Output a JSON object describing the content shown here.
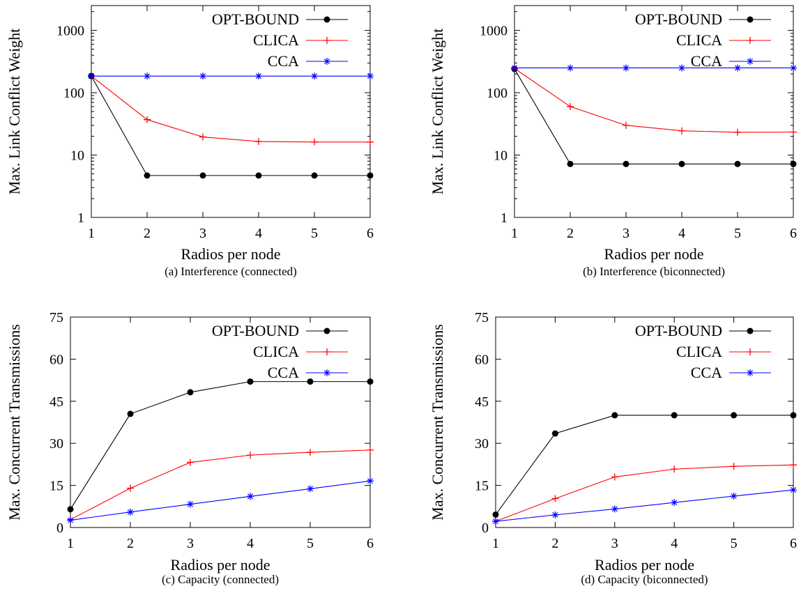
{
  "chart_data": [
    {
      "type": "line",
      "caption": "(a)  Interference (connected)",
      "xlabel": "Radios per node",
      "ylabel": "Max. Link Conflict Weight",
      "yscale": "log",
      "xlim": [
        1,
        6
      ],
      "ylim": [
        1,
        2500
      ],
      "x_ticks": [
        1,
        2,
        3,
        4,
        5,
        6
      ],
      "y_ticks": [
        1,
        10,
        100,
        1000
      ],
      "y_tick_labels": [
        "1",
        "10",
        "100",
        "1000"
      ],
      "legend_position": "top-right",
      "grid": false,
      "x": [
        1,
        2,
        3,
        4,
        5,
        6
      ],
      "series": [
        {
          "name": "OPT-BOUND",
          "color": "#000000",
          "marker": "dot",
          "values": [
            185,
            4.7,
            4.7,
            4.7,
            4.7,
            4.7
          ]
        },
        {
          "name": "CLICA",
          "color": "#ff0000",
          "marker": "plus",
          "values": [
            185,
            37,
            19.5,
            16.5,
            16.2,
            16.2
          ]
        },
        {
          "name": "CCA",
          "color": "#0000ff",
          "marker": "star",
          "values": [
            185,
            185,
            185,
            185,
            185,
            185
          ]
        }
      ]
    },
    {
      "type": "line",
      "caption": "(b)  Interference (biconnected)",
      "xlabel": "Radios per node",
      "ylabel": "Max. Link Conflict Weight",
      "yscale": "log",
      "xlim": [
        1,
        6
      ],
      "ylim": [
        1,
        2500
      ],
      "x_ticks": [
        1,
        2,
        3,
        4,
        5,
        6
      ],
      "y_ticks": [
        1,
        10,
        100,
        1000
      ],
      "y_tick_labels": [
        "1",
        "10",
        "100",
        "1000"
      ],
      "legend_position": "top-right",
      "grid": false,
      "x": [
        1,
        2,
        3,
        4,
        5,
        6
      ],
      "series": [
        {
          "name": "OPT-BOUND",
          "color": "#000000",
          "marker": "dot",
          "values": [
            240,
            7.2,
            7.2,
            7.2,
            7.2,
            7.2
          ]
        },
        {
          "name": "CLICA",
          "color": "#ff0000",
          "marker": "plus",
          "values": [
            245,
            60,
            30,
            24.5,
            23.2,
            23.4
          ]
        },
        {
          "name": "CCA",
          "color": "#0000ff",
          "marker": "star",
          "values": [
            250,
            250,
            250,
            250,
            250,
            250
          ]
        }
      ]
    },
    {
      "type": "line",
      "caption": "(c)  Capacity (connected)",
      "xlabel": "Radios per node",
      "ylabel": "Max. Concurrent Transmissions",
      "yscale": "linear",
      "xlim": [
        1,
        6
      ],
      "ylim": [
        0,
        75
      ],
      "x_ticks": [
        1,
        2,
        3,
        4,
        5,
        6
      ],
      "y_ticks": [
        0,
        15,
        30,
        45,
        60,
        75
      ],
      "y_tick_labels": [
        "0",
        "15",
        "30",
        "45",
        "60",
        "75"
      ],
      "legend_position": "top-right",
      "grid": false,
      "x": [
        1,
        2,
        3,
        4,
        5,
        6
      ],
      "series": [
        {
          "name": "OPT-BOUND",
          "color": "#000000",
          "marker": "dot",
          "values": [
            6.5,
            40.5,
            48.2,
            52,
            52,
            52
          ]
        },
        {
          "name": "CLICA",
          "color": "#ff0000",
          "marker": "plus",
          "values": [
            2.8,
            14,
            23.2,
            25.8,
            26.8,
            27.6
          ]
        },
        {
          "name": "CCA",
          "color": "#0000ff",
          "marker": "star",
          "values": [
            2.6,
            5.5,
            8.3,
            11.1,
            13.8,
            16.6
          ]
        }
      ]
    },
    {
      "type": "line",
      "caption": "(d)  Capacity (biconnected)",
      "xlabel": "Radios per node",
      "ylabel": "Max. Concurrent Transmissions",
      "yscale": "linear",
      "xlim": [
        1,
        6
      ],
      "ylim": [
        0,
        75
      ],
      "x_ticks": [
        1,
        2,
        3,
        4,
        5,
        6
      ],
      "y_ticks": [
        0,
        15,
        30,
        45,
        60,
        75
      ],
      "y_tick_labels": [
        "0",
        "15",
        "30",
        "45",
        "60",
        "75"
      ],
      "legend_position": "top-right",
      "grid": false,
      "x": [
        1,
        2,
        3,
        4,
        5,
        6
      ],
      "series": [
        {
          "name": "OPT-BOUND",
          "color": "#000000",
          "marker": "dot",
          "values": [
            4.6,
            33.5,
            40,
            40,
            40,
            40
          ]
        },
        {
          "name": "CLICA",
          "color": "#ff0000",
          "marker": "plus",
          "values": [
            2.2,
            10.3,
            18,
            20.8,
            21.8,
            22.3
          ]
        },
        {
          "name": "CCA",
          "color": "#0000ff",
          "marker": "star",
          "values": [
            2.2,
            4.5,
            6.6,
            8.9,
            11.2,
            13.4
          ]
        }
      ]
    }
  ]
}
